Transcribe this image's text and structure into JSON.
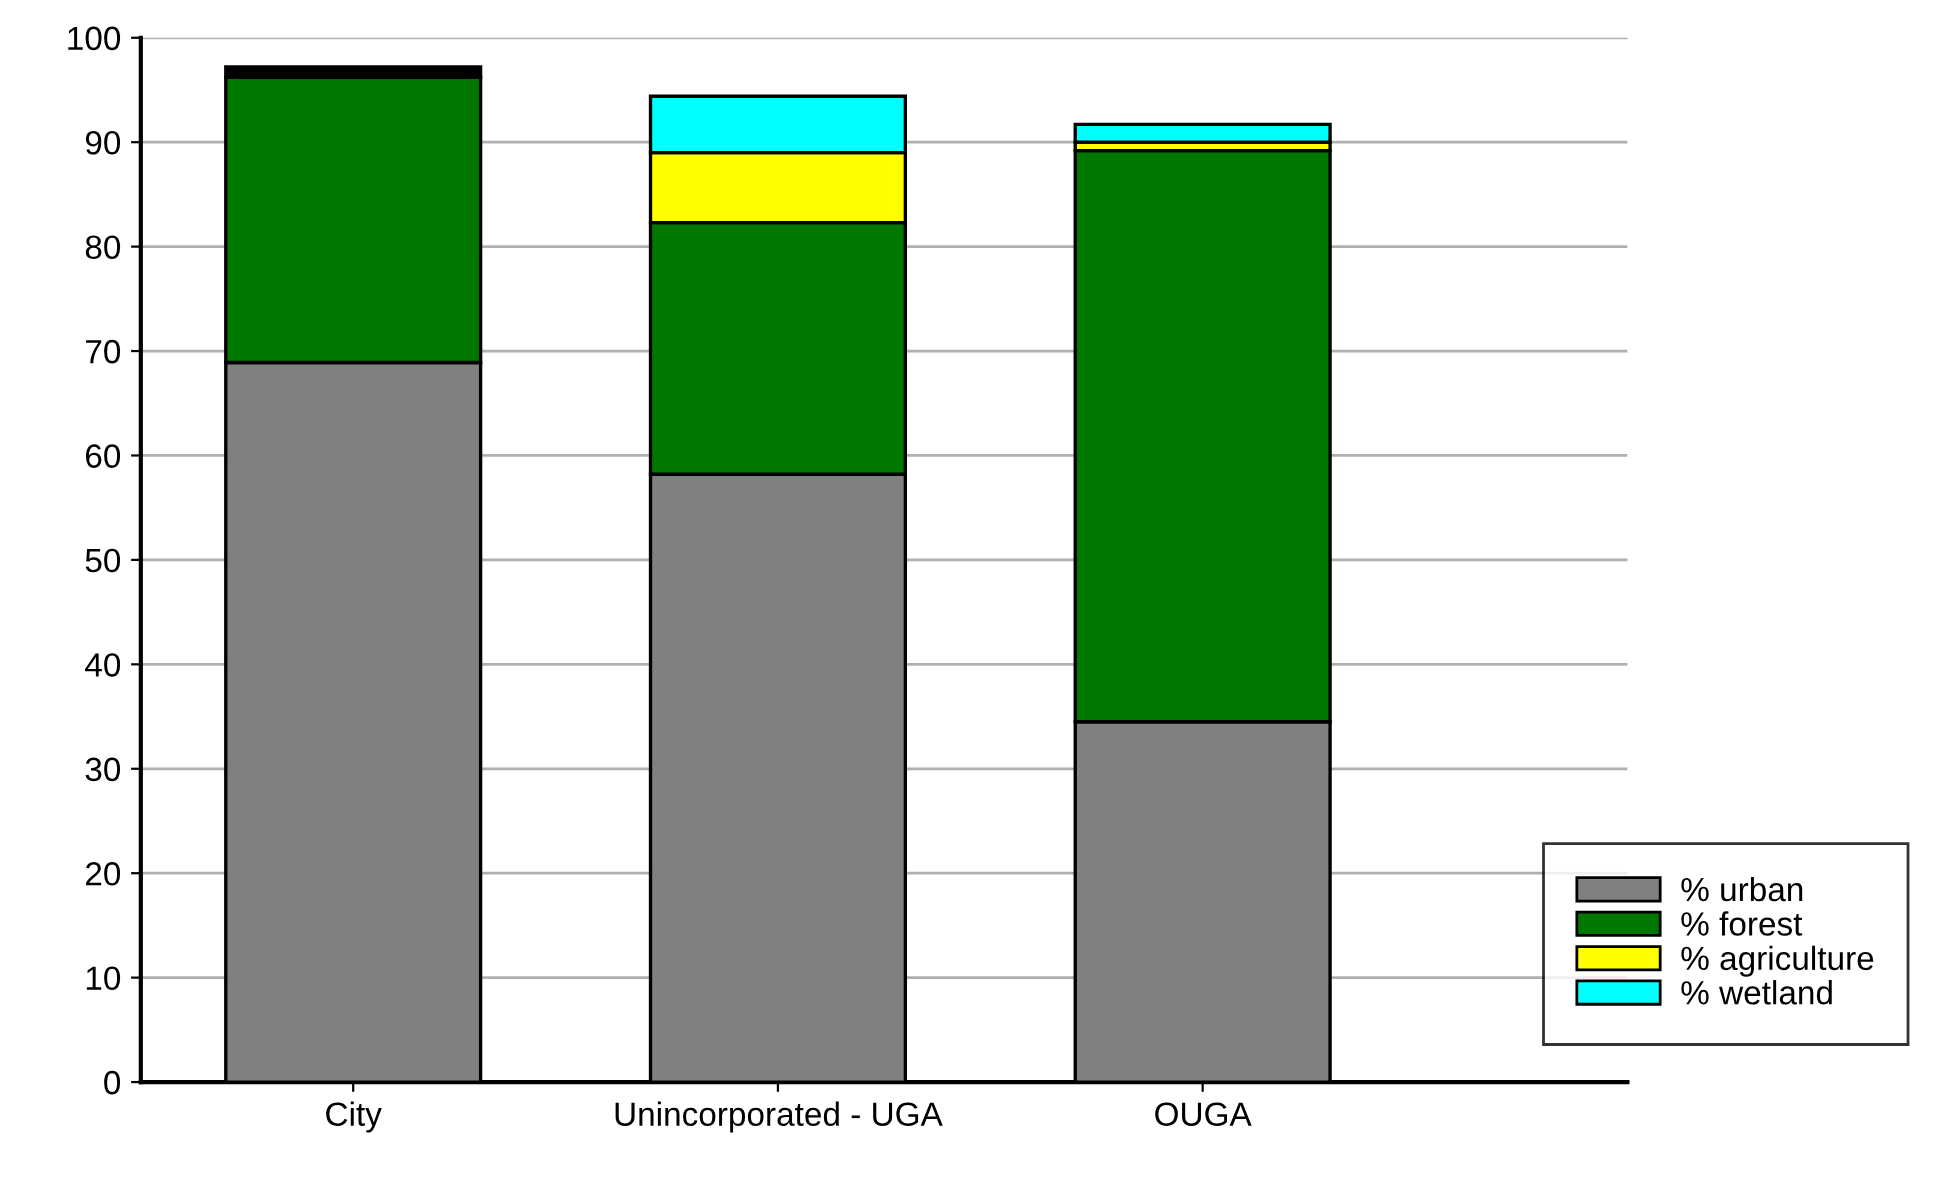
{
  "chart_data": {
    "type": "bar",
    "stacked": true,
    "categories": [
      "City",
      "Unincorporated - UGA",
      "OUGA"
    ],
    "series": [
      {
        "name": "% urban",
        "color": "#808080",
        "values": [
          68.9,
          58.2,
          34.5
        ]
      },
      {
        "name": "% forest",
        "color": "#007800",
        "values": [
          27.3,
          24.1,
          54.7
        ]
      },
      {
        "name": "% agriculture",
        "color": "#ffff00",
        "values": [
          null,
          6.7,
          0.8
        ]
      },
      {
        "name": "% wetland",
        "color": "#00ffff",
        "values": [
          null,
          5.4,
          1.7
        ]
      },
      {
        "color": "#000000",
        "values": [
          1.0,
          null,
          null
        ]
      }
    ],
    "ylim": [
      0,
      100
    ],
    "yticks": [
      0,
      10,
      20,
      30,
      40,
      50,
      60,
      70,
      80,
      90,
      100
    ],
    "grid": "y",
    "legend": "bottom right"
  }
}
